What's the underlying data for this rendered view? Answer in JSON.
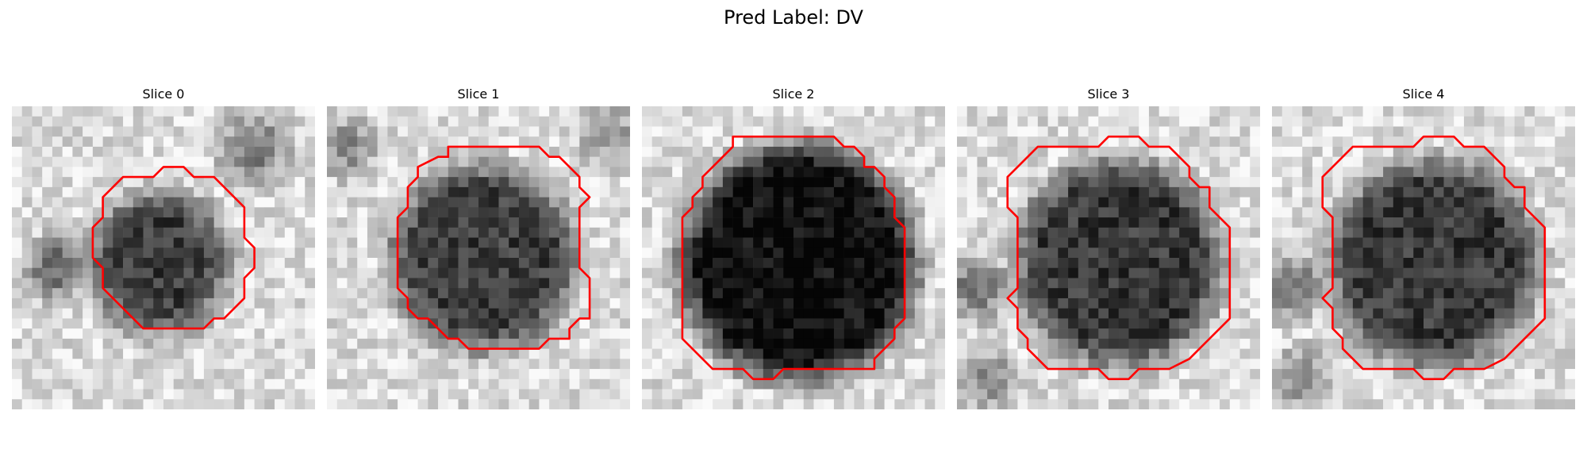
{
  "figure": {
    "title": "Pred Label: DV"
  },
  "panels": [
    {
      "title": "Slice 0"
    },
    {
      "title": "Slice 1"
    },
    {
      "title": "Slice 2"
    },
    {
      "title": "Slice 3"
    },
    {
      "title": "Slice 4"
    }
  ],
  "colors": {
    "contour": "#ff0000",
    "background": "#ffffff"
  }
}
